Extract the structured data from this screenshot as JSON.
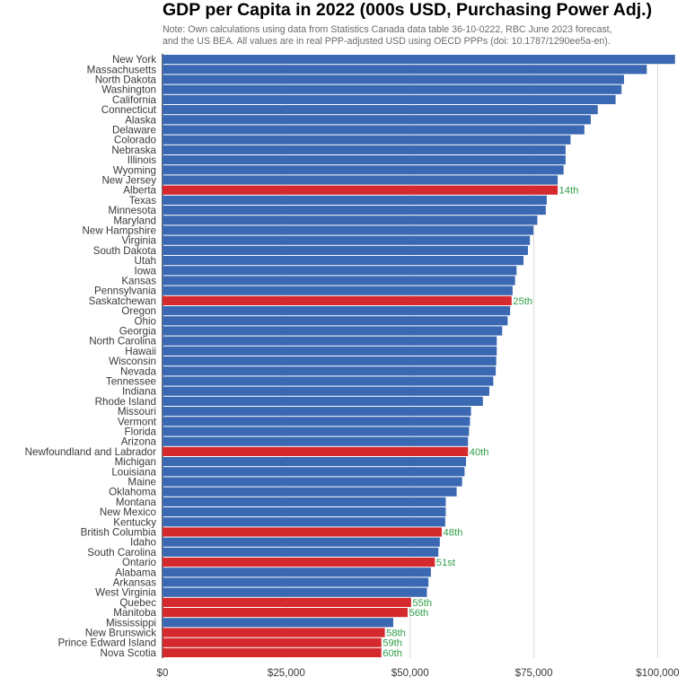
{
  "chart_data": {
    "type": "bar",
    "orientation": "horizontal",
    "title": "GDP per Capita in 2022 (000s USD, Purchasing Power Adj.)",
    "subtitle_lines": [
      "Note: Own calculations using data from Statistics Canada data table 36-10-0222, RBC June 2023 forecast,",
      "and the US BEA. All values are in real PPP-adjusted USD using OECD PPPs (doi: 10.1787/1290ee5a-en)."
    ],
    "xlim": [
      0,
      103000
    ],
    "xticks": [
      0,
      25000,
      50000,
      75000,
      100000
    ],
    "xtick_labels": [
      "$0",
      "$25,000",
      "$50,000",
      "$75,000",
      "$100,000"
    ],
    "grid": "vertical",
    "colors": {
      "us": "#3a68b2",
      "canada": "#d42a2e",
      "rank": "#2e9e47",
      "grid": "#d9d9d9"
    },
    "categories": [
      "New York",
      "Massachusetts",
      "North Dakota",
      "Washington",
      "California",
      "Connecticut",
      "Alaska",
      "Delaware",
      "Colorado",
      "Nebraska",
      "Illinois",
      "Wyoming",
      "New Jersey",
      "Alberta",
      "Texas",
      "Minnesota",
      "Maryland",
      "New Hampshire",
      "Virginia",
      "South Dakota",
      "Utah",
      "Iowa",
      "Kansas",
      "Pennsylvania",
      "Saskatchewan",
      "Oregon",
      "Ohio",
      "Georgia",
      "North Carolina",
      "Hawaii",
      "Wisconsin",
      "Nevada",
      "Tennessee",
      "Indiana",
      "Rhode Island",
      "Missouri",
      "Vermont",
      "Florida",
      "Arizona",
      "Newfoundland and Labrador",
      "Michigan",
      "Louisiana",
      "Maine",
      "Oklahoma",
      "Montana",
      "New Mexico",
      "Kentucky",
      "British Columbia",
      "Idaho",
      "South Carolina",
      "Ontario",
      "Alabama",
      "Arkansas",
      "West Virginia",
      "Quebec",
      "Manitoba",
      "Mississippi",
      "New Brunswick",
      "Prince Edward Island",
      "Nova Scotia"
    ],
    "values": [
      103500,
      97800,
      93200,
      92700,
      91500,
      87900,
      86500,
      85200,
      82400,
      81400,
      81400,
      81000,
      79800,
      79800,
      77600,
      77400,
      75700,
      74900,
      74200,
      73800,
      72900,
      71500,
      71200,
      70700,
      70500,
      70200,
      69700,
      68600,
      67500,
      67500,
      67400,
      67300,
      66800,
      66000,
      64700,
      62300,
      62100,
      61900,
      61700,
      61700,
      61300,
      61000,
      60500,
      59400,
      57200,
      57200,
      57100,
      56400,
      56000,
      55700,
      55000,
      54200,
      53700,
      53400,
      50200,
      49500,
      46600,
      44900,
      44200,
      44200
    ],
    "is_canada": [
      false,
      false,
      false,
      false,
      false,
      false,
      false,
      false,
      false,
      false,
      false,
      false,
      false,
      true,
      false,
      false,
      false,
      false,
      false,
      false,
      false,
      false,
      false,
      false,
      true,
      false,
      false,
      false,
      false,
      false,
      false,
      false,
      false,
      false,
      false,
      false,
      false,
      false,
      false,
      true,
      false,
      false,
      false,
      false,
      false,
      false,
      false,
      true,
      false,
      false,
      true,
      false,
      false,
      false,
      true,
      true,
      false,
      true,
      true,
      true
    ],
    "rank_labels": [
      {
        "category": "Alberta",
        "label": "14th"
      },
      {
        "category": "Saskatchewan",
        "label": "25th"
      },
      {
        "category": "Newfoundland and Labrador",
        "label": "40th"
      },
      {
        "category": "British Columbia",
        "label": "48th"
      },
      {
        "category": "Ontario",
        "label": "51st"
      },
      {
        "category": "Quebec",
        "label": "55th"
      },
      {
        "category": "Manitoba",
        "label": "56th"
      },
      {
        "category": "New Brunswick",
        "label": "58th"
      },
      {
        "category": "Prince Edward Island",
        "label": "59th"
      },
      {
        "category": "Nova Scotia",
        "label": "60th"
      }
    ]
  }
}
